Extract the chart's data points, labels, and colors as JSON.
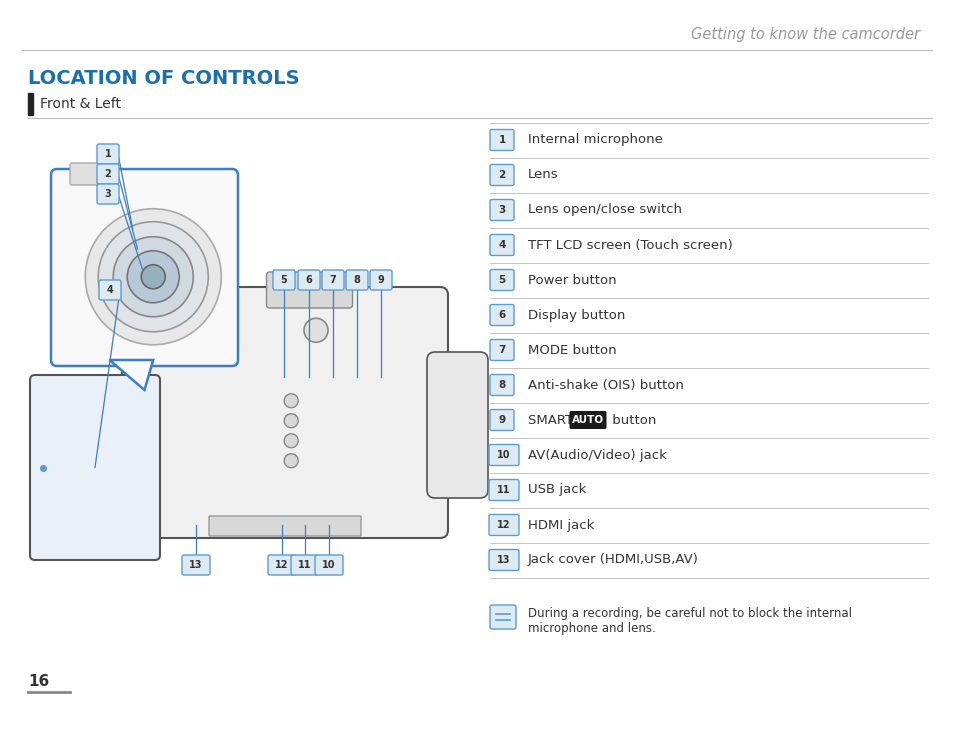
{
  "page_title": "Getting to know the camcorder",
  "section_title": "LOCATION OF CONTROLS",
  "subsection": "Front & Left",
  "page_number": "16",
  "items": [
    {
      "num": "1",
      "text": "Internal microphone"
    },
    {
      "num": "2",
      "text": "Lens"
    },
    {
      "num": "3",
      "text": "Lens open/close switch"
    },
    {
      "num": "4",
      "text": "TFT LCD screen (Touch screen)"
    },
    {
      "num": "5",
      "text": "Power button"
    },
    {
      "num": "6",
      "text": "Display button"
    },
    {
      "num": "7",
      "text": "MODE button"
    },
    {
      "num": "8",
      "text": "Anti-shake (OIS) button"
    },
    {
      "num": "9",
      "text": "SMART",
      "smart_auto": true,
      "text2": " button"
    },
    {
      "num": "10",
      "text": "AV(Audio/Video) jack"
    },
    {
      "num": "11",
      "text": "USB jack"
    },
    {
      "num": "12",
      "text": "HDMI jack"
    },
    {
      "num": "13",
      "text": "Jack cover (HDMI,USB,AV)"
    }
  ],
  "note_text1": "During a recording, be careful not to block the internal",
  "note_text2": "microphone and lens.",
  "colors": {
    "blue_title": "#1a6faf",
    "badge_bg": "#deeaf1",
    "badge_border": "#5b9bd5",
    "black_badge_bg": "#1a1a1a",
    "black_badge_text": "#ffffff",
    "text_dark": "#333333",
    "line_color": "#bbbbbb",
    "page_title_color": "#999999",
    "subsection_bar": "#222222",
    "note_icon_bg": "#deeaf1",
    "note_icon_border": "#5b9bd5",
    "diagram_line": "#3a7fc1",
    "diagram_body": "#f0f0f0",
    "diagram_edge": "#555555"
  }
}
